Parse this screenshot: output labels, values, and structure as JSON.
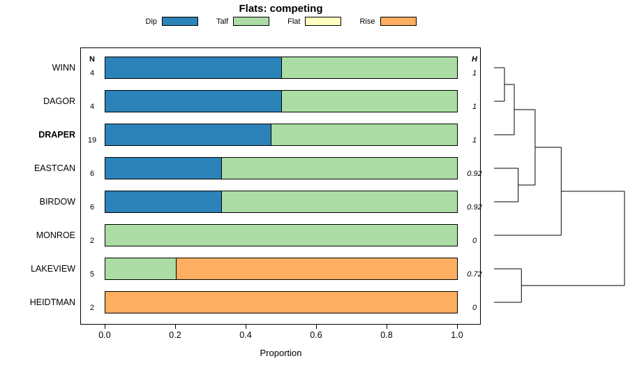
{
  "chart_data": {
    "type": "bar",
    "variant": "horizontal-stacked-proportion-with-dendrogram",
    "title": "Flats: competing",
    "xlabel": "Proportion",
    "xlim": [
      0,
      1
    ],
    "x_ticks": [
      "0.0",
      "0.2",
      "0.4",
      "0.6",
      "0.8",
      "1.0"
    ],
    "grid": false,
    "legend_position": "top-center",
    "categories": [
      "Dip",
      "Talf",
      "Flat",
      "Rise"
    ],
    "colors": {
      "Dip": "#2b83ba",
      "Talf": "#abdda4",
      "Flat": "#ffffbf",
      "Rise": "#fdae61"
    },
    "col_headers": {
      "n": "N",
      "h": "H"
    },
    "rows": [
      {
        "label": "WINN",
        "bold": false,
        "n": "4",
        "h": "1",
        "segments": [
          {
            "category": "Dip",
            "value": 0.5
          },
          {
            "category": "Talf",
            "value": 0.5
          }
        ]
      },
      {
        "label": "DAGOR",
        "bold": false,
        "n": "4",
        "h": "1",
        "segments": [
          {
            "category": "Dip",
            "value": 0.5
          },
          {
            "category": "Talf",
            "value": 0.5
          }
        ]
      },
      {
        "label": "DRAPER",
        "bold": true,
        "n": "19",
        "h": "1",
        "segments": [
          {
            "category": "Dip",
            "value": 0.47
          },
          {
            "category": "Talf",
            "value": 0.53
          }
        ]
      },
      {
        "label": "EASTCAN",
        "bold": false,
        "n": "6",
        "h": "0.92",
        "segments": [
          {
            "category": "Dip",
            "value": 0.33
          },
          {
            "category": "Talf",
            "value": 0.67
          }
        ]
      },
      {
        "label": "BIRDOW",
        "bold": false,
        "n": "6",
        "h": "0.92",
        "segments": [
          {
            "category": "Dip",
            "value": 0.33
          },
          {
            "category": "Talf",
            "value": 0.67
          }
        ]
      },
      {
        "label": "MONROE",
        "bold": false,
        "n": "2",
        "h": "0",
        "segments": [
          {
            "category": "Talf",
            "value": 1.0
          }
        ]
      },
      {
        "label": "LAKEVIEW",
        "bold": false,
        "n": "5",
        "h": "0.72",
        "segments": [
          {
            "category": "Talf",
            "value": 0.2
          },
          {
            "category": "Rise",
            "value": 0.8
          }
        ]
      },
      {
        "label": "HEIDTMAN",
        "bold": false,
        "n": "2",
        "h": "0",
        "segments": [
          {
            "category": "Rise",
            "value": 1.0
          }
        ]
      }
    ],
    "dendrogram": {
      "position": "right",
      "leaves": [
        "WINN",
        "DAGOR",
        "DRAPER",
        "EASTCAN",
        "BIRDOW",
        "MONROE",
        "LAKEVIEW",
        "HEIDTMAN"
      ],
      "merges": [
        {
          "id": "M1",
          "a": "L0",
          "b": "L1",
          "height": 0.08
        },
        {
          "id": "M2",
          "a": "M1",
          "b": "L2",
          "height": 0.155
        },
        {
          "id": "M3",
          "a": "L3",
          "b": "L4",
          "height": 0.185
        },
        {
          "id": "M4",
          "a": "M2",
          "b": "M3",
          "height": 0.315
        },
        {
          "id": "M5",
          "a": "M4",
          "b": "L5",
          "height": 0.515
        },
        {
          "id": "M6",
          "a": "L6",
          "b": "L7",
          "height": 0.21
        },
        {
          "id": "M7",
          "a": "M5",
          "b": "M6",
          "height": 1.0
        }
      ]
    }
  }
}
